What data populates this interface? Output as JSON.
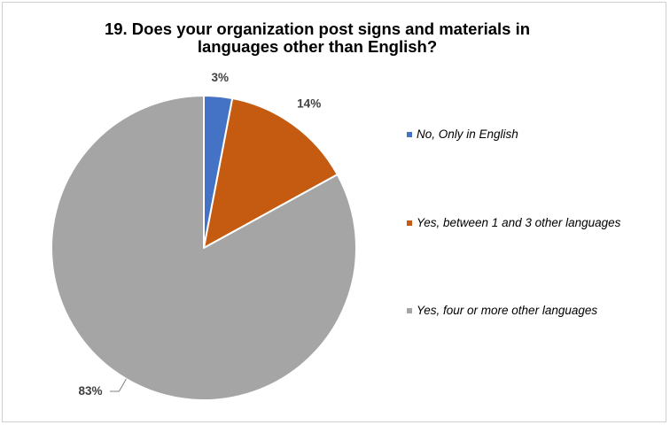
{
  "chart_data": {
    "type": "pie",
    "title_lines": [
      "19. Does your organization post signs and materials in",
      "languages other than English?"
    ],
    "categories": [
      "No, Only in English",
      "Yes, between 1 and 3 other languages",
      "Yes, four or more other languages"
    ],
    "values": [
      3,
      14,
      83
    ],
    "data_labels": [
      "3%",
      "14%",
      "83%"
    ],
    "colors": [
      "#4472c4",
      "#c55a11",
      "#a5a5a5"
    ],
    "legend_position": "right"
  }
}
